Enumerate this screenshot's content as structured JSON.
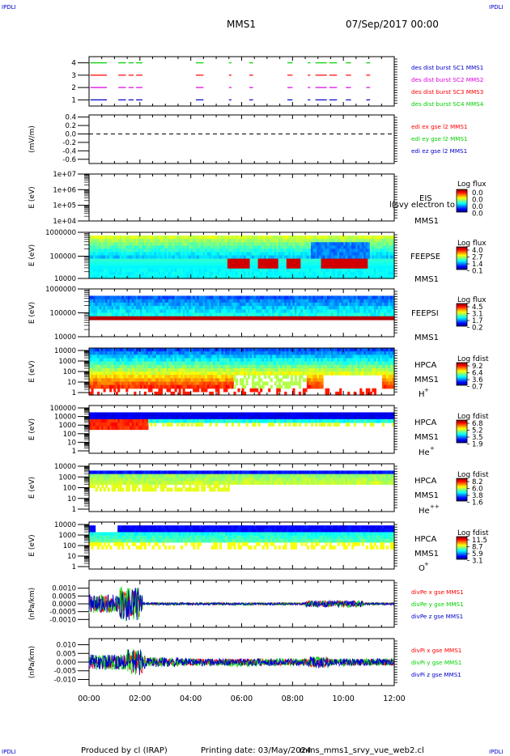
{
  "header": {
    "corner_tl": "IPDLI",
    "corner_tr": "IPDLI",
    "corner_bl": "IPDLI",
    "corner_br": "IPDLI",
    "spacecraft": "MMS1",
    "date": "07/Sep/2017 00:00"
  },
  "footer": {
    "produced_by": "Produced by cl (IRAP)",
    "printing_date": "Printing date: 03/May/2024",
    "script": "mms_mms1_srvy_vue_web2.cl"
  },
  "time_axis": {
    "ticks": [
      "00:00",
      "02:00",
      "04:00",
      "06:00",
      "08:00",
      "10:00",
      "12:00"
    ],
    "range_hours": [
      0,
      12
    ]
  },
  "colors": {
    "red": "#ff0000",
    "green": "#00d000",
    "blue": "#0000cc",
    "magenta": "#e000e0"
  },
  "chart_data": [
    {
      "type": "line",
      "panel": "burst",
      "ytick_labels": [
        "1",
        "2",
        "3",
        "4"
      ],
      "legend": [
        {
          "label": "des dist burst SC1 MMS1",
          "color": "#0000cc"
        },
        {
          "label": "des dist burst SC2 MMS2",
          "color": "#e000e0"
        },
        {
          "label": "des dist burst SC3 MMS3",
          "color": "#ff0000"
        },
        {
          "label": "des dist burst SC4 MMS4",
          "color": "#00d000"
        }
      ],
      "intervals_hours": [
        [
          0.05,
          0.7
        ],
        [
          1.15,
          1.45
        ],
        [
          1.55,
          1.75
        ],
        [
          1.85,
          2.1
        ],
        [
          4.2,
          4.5
        ],
        [
          5.5,
          5.6
        ],
        [
          6.3,
          6.45
        ],
        [
          7.8,
          8.0
        ],
        [
          8.6,
          8.7
        ],
        [
          8.9,
          9.35
        ],
        [
          9.45,
          9.75
        ],
        [
          10.1,
          10.3
        ],
        [
          10.9,
          11.05
        ]
      ],
      "ylim": [
        0.5,
        4.5
      ]
    },
    {
      "type": "line",
      "panel": "edi",
      "ylabel": "(mV/m)",
      "ytick_labels": [
        "0.4",
        "0.2",
        "0.0",
        "-0.2",
        "-0.4",
        "-0.6"
      ],
      "ylim": [
        -0.7,
        0.45
      ],
      "legend": [
        {
          "label": "edi ex gse l2 MMS1",
          "color": "#ff0000"
        },
        {
          "label": "edi ey gse l2 MMS1",
          "color": "#00d000"
        },
        {
          "label": "edi ez gse l2 MMS1",
          "color": "#0000cc"
        }
      ],
      "dashed_zero_line": true
    },
    {
      "type": "heatmap",
      "panel": "eis",
      "ylabel": "E (eV)",
      "ytick_labels": [
        "1e+07",
        "1e+06",
        "1e+05",
        "1e+04"
      ],
      "instrument": "EIS",
      "spacecraft_label": "MMS1",
      "overlay_text": "l(svy electron to",
      "colorbar_title": "Log flux",
      "colorbar_labels": [
        "0.0",
        "0.0",
        "0.0",
        "0.0"
      ],
      "empty": true
    },
    {
      "type": "heatmap",
      "panel": "feepse",
      "ylabel": "E (eV)",
      "ytick_labels": [
        "1000000",
        "100000",
        "10000"
      ],
      "instrument": "FEEPSE",
      "spacecraft_label": "MMS1",
      "colorbar_title": "Log flux",
      "colorbar_labels": [
        "4.0",
        "2.7",
        "1.4",
        "0.1"
      ],
      "hot_intervals_hours": [
        [
          5.4,
          6.3
        ],
        [
          6.6,
          7.4
        ],
        [
          7.7,
          8.3
        ],
        [
          9.1,
          10.9
        ]
      ]
    },
    {
      "type": "heatmap",
      "panel": "feepsi",
      "ylabel": "E (eV)",
      "ytick_labels": [
        "1000000",
        "100000",
        "10000"
      ],
      "instrument": "FEEPSI",
      "spacecraft_label": "MMS1",
      "colorbar_title": "Log flux",
      "colorbar_labels": [
        "4.5",
        "3.1",
        "1.7",
        "0.2"
      ]
    },
    {
      "type": "heatmap",
      "panel": "hpca_h",
      "ylabel": "E (eV)",
      "ytick_labels": [
        "10000",
        "1000",
        "100",
        "10",
        "1"
      ],
      "instrument": "HPCA",
      "spacecraft_label": "MMS1",
      "species": "H",
      "charge": "+",
      "colorbar_title": "Log fdist",
      "colorbar_labels": [
        "9.2",
        "6.4",
        "3.6",
        "0.7"
      ]
    },
    {
      "type": "heatmap",
      "panel": "hpca_he",
      "ylabel": "E (eV)",
      "ytick_labels": [
        "100000",
        "10000",
        "1000",
        "100",
        "10",
        "1"
      ],
      "instrument": "HPCA",
      "spacecraft_label": "MMS1",
      "species": "He",
      "charge": "+",
      "colorbar_title": "Log fdist",
      "colorbar_labels": [
        "6.8",
        "5.2",
        "3.5",
        "1.9"
      ]
    },
    {
      "type": "heatmap",
      "panel": "hpca_hepp",
      "ylabel": "E (eV)",
      "ytick_labels": [
        "10000",
        "1000",
        "100",
        "10",
        "1"
      ],
      "instrument": "HPCA",
      "spacecraft_label": "MMS1",
      "species": "He",
      "charge": "++",
      "colorbar_title": "Log fdist",
      "colorbar_labels": [
        "8.2",
        "6.0",
        "3.8",
        "1.6"
      ]
    },
    {
      "type": "heatmap",
      "panel": "hpca_o",
      "ylabel": "E (eV)",
      "ytick_labels": [
        "10000",
        "1000",
        "100",
        "10",
        "1"
      ],
      "instrument": "HPCA",
      "spacecraft_label": "MMS1",
      "species": "O",
      "charge": "+",
      "colorbar_title": "Log fdist",
      "colorbar_labels": [
        "11.5",
        "8.7",
        "5.9",
        "3.1"
      ]
    },
    {
      "type": "line",
      "panel": "divpe",
      "ylabel": "(nPa/km)",
      "ytick_labels": [
        "0.0010",
        "0.0005",
        "0.0000",
        "-0.0005",
        "-0.0010"
      ],
      "ylim": [
        -0.0015,
        0.0015
      ],
      "legend": [
        {
          "label": "divPe x gse MMS1",
          "color": "#ff0000"
        },
        {
          "label": "divPe y gse MMS1",
          "color": "#00d000"
        },
        {
          "label": "divPe z gse MMS1",
          "color": "#0000cc"
        }
      ]
    },
    {
      "type": "line",
      "panel": "divpi",
      "ylabel": "(nPa/km)",
      "ytick_labels": [
        "0.010",
        "0.005",
        "0.000",
        "-0.005",
        "-0.010"
      ],
      "ylim": [
        -0.0135,
        0.0135
      ],
      "legend": [
        {
          "label": "divPi x gse MMS1",
          "color": "#ff0000"
        },
        {
          "label": "divPi y gse MMS1",
          "color": "#00d000"
        },
        {
          "label": "divPi z gse MMS1",
          "color": "#0000cc"
        }
      ]
    }
  ]
}
